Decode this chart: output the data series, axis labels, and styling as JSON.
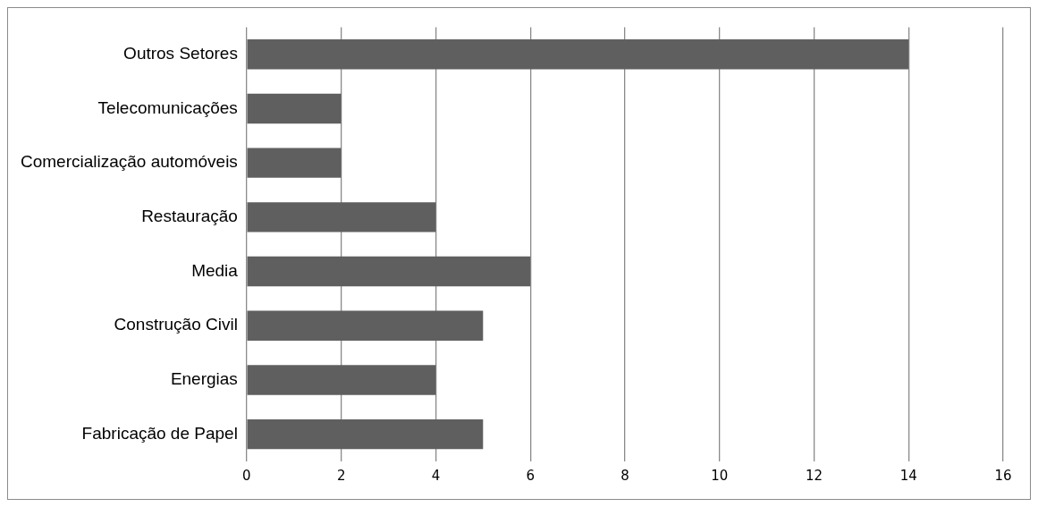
{
  "chart_data": {
    "type": "bar",
    "orientation": "horizontal",
    "categories": [
      "Outros Setores",
      "Telecomunicações",
      "Comercialização automóveis",
      "Restauração",
      "Media",
      "Construção Civil",
      "Energias",
      "Fabricação de Papel"
    ],
    "values": [
      14,
      2,
      2,
      4,
      6,
      5,
      4,
      5
    ],
    "color": "#5f5f5f",
    "xlim": [
      0,
      16
    ],
    "xticks": [
      0,
      2,
      4,
      6,
      8,
      10,
      12,
      14,
      16
    ],
    "grid": "x",
    "legend": false
  }
}
